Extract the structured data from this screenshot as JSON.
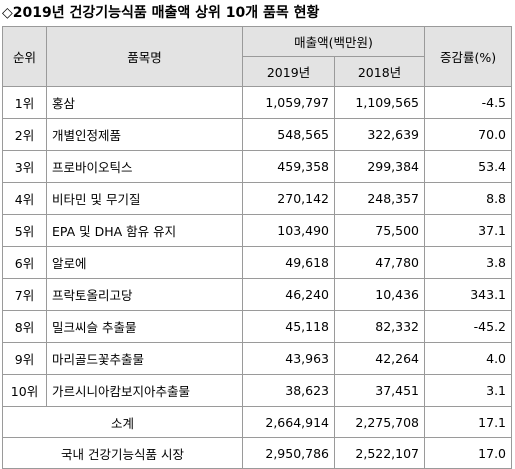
{
  "title": "◇2019년 건강기능식품 매출액 상위 10개 품목 현황",
  "headers": {
    "rank": "순위",
    "item": "품목명",
    "sales": "매출액(백만원)",
    "y2019": "2019년",
    "y2018": "2018년",
    "growth": "증감률(%)"
  },
  "rows": [
    {
      "rank": "1위",
      "item": "홍삼",
      "y2019": "1,059,797",
      "y2018": "1,109,565",
      "growth": "-4.5"
    },
    {
      "rank": "2위",
      "item": "개별인정제품",
      "y2019": "548,565",
      "y2018": "322,639",
      "growth": "70.0"
    },
    {
      "rank": "3위",
      "item": "프로바이오틱스",
      "y2019": "459,358",
      "y2018": "299,384",
      "growth": "53.4"
    },
    {
      "rank": "4위",
      "item": "비타민 및 무기질",
      "y2019": "270,142",
      "y2018": "248,357",
      "growth": "8.8"
    },
    {
      "rank": "5위",
      "item": "EPA 및 DHA 함유 유지",
      "y2019": "103,490",
      "y2018": "75,500",
      "growth": "37.1"
    },
    {
      "rank": "6위",
      "item": "알로에",
      "y2019": "49,618",
      "y2018": "47,780",
      "growth": "3.8"
    },
    {
      "rank": "7위",
      "item": "프락토올리고당",
      "y2019": "46,240",
      "y2018": "10,436",
      "growth": "343.1"
    },
    {
      "rank": "8위",
      "item": "밀크씨슬 추출물",
      "y2019": "45,118",
      "y2018": "82,332",
      "growth": "-45.2"
    },
    {
      "rank": "9위",
      "item": "마리골드꽃추출물",
      "y2019": "43,963",
      "y2018": "42,264",
      "growth": "4.0"
    },
    {
      "rank": "10위",
      "item": "가르시니아캄보지아추출물",
      "y2019": "38,623",
      "y2018": "37,451",
      "growth": "3.1"
    }
  ],
  "subtotal": {
    "label": "소계",
    "y2019": "2,664,914",
    "y2018": "2,275,708",
    "growth": "17.1"
  },
  "total": {
    "label": "국내 건강기능식품 시장",
    "y2019": "2,950,786",
    "y2018": "2,522,107",
    "growth": "17.0"
  }
}
